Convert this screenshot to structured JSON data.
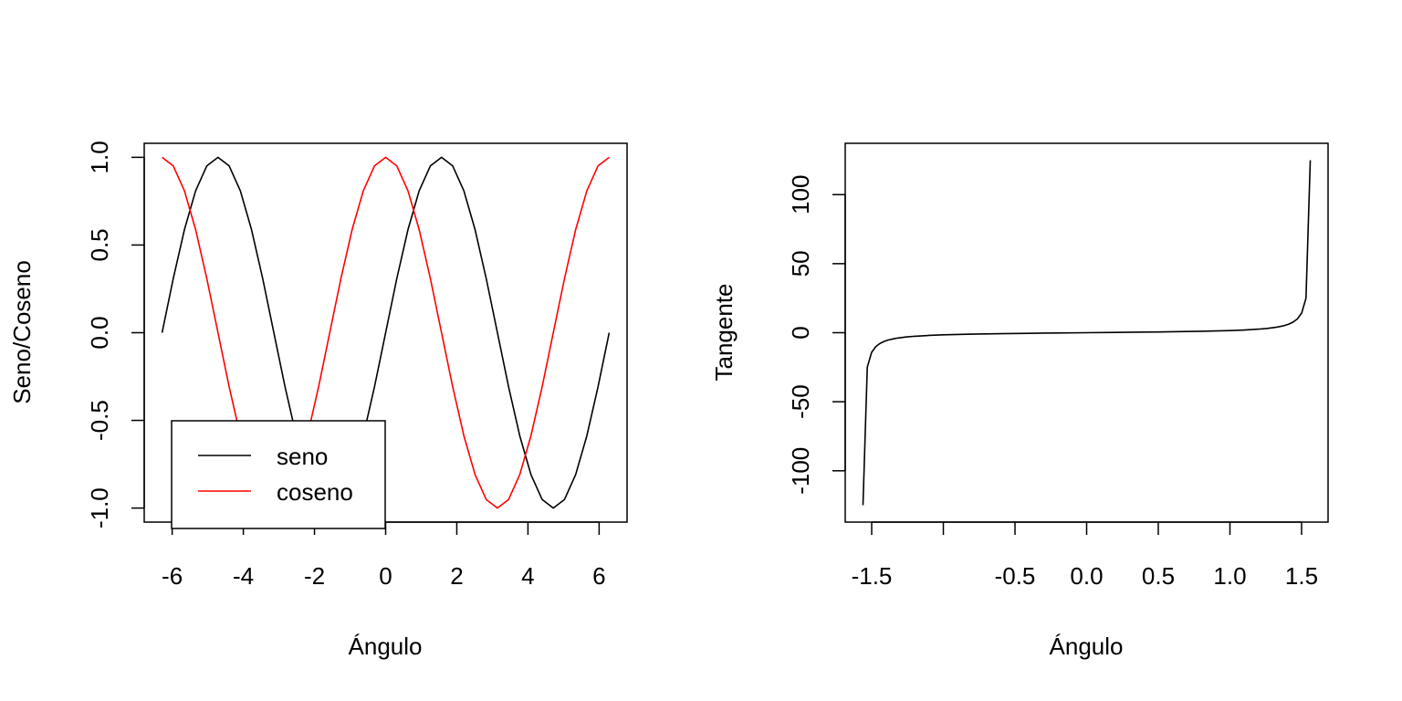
{
  "chart_data": [
    {
      "type": "line",
      "title": "",
      "xlabel": "Ángulo",
      "ylabel": "Seno/Coseno",
      "xlim": [
        -6.283,
        6.283
      ],
      "ylim": [
        -1,
        1
      ],
      "xticks": [
        "-6",
        "-4",
        "-2",
        "0",
        "2",
        "4",
        "6"
      ],
      "yticks": [
        "-1.0",
        "-0.5",
        "0.0",
        "0.5",
        "1.0"
      ],
      "grid": false,
      "legend_position": "bottom-left",
      "x": [
        -6.283,
        -5.969,
        -5.655,
        -5.341,
        -5.027,
        -4.712,
        -4.398,
        -4.084,
        -3.77,
        -3.456,
        -3.142,
        -2.827,
        -2.513,
        -2.199,
        -1.885,
        -1.571,
        -1.257,
        -0.942,
        -0.628,
        -0.314,
        0,
        0.314,
        0.628,
        0.942,
        1.257,
        1.571,
        1.885,
        2.199,
        2.513,
        2.827,
        3.142,
        3.456,
        3.77,
        4.084,
        4.398,
        4.712,
        5.027,
        5.341,
        5.655,
        5.969,
        6.283
      ],
      "series": [
        {
          "name": "seno",
          "color": "#000000",
          "values": [
            0,
            0.309,
            0.588,
            0.809,
            0.951,
            1,
            0.951,
            0.809,
            0.588,
            0.309,
            0,
            -0.309,
            -0.588,
            -0.809,
            -0.951,
            -1,
            -0.951,
            -0.809,
            -0.588,
            -0.309,
            0,
            0.309,
            0.588,
            0.809,
            0.951,
            1,
            0.951,
            0.809,
            0.588,
            0.309,
            0,
            -0.309,
            -0.588,
            -0.809,
            -0.951,
            -1,
            -0.951,
            -0.809,
            -0.588,
            -0.309,
            0
          ]
        },
        {
          "name": "coseno",
          "color": "#ff0000",
          "values": [
            1,
            0.951,
            0.809,
            0.588,
            0.309,
            0,
            -0.309,
            -0.588,
            -0.809,
            -0.951,
            -1,
            -0.951,
            -0.809,
            -0.588,
            -0.309,
            0,
            0.309,
            0.588,
            0.809,
            0.951,
            1,
            0.951,
            0.809,
            0.588,
            0.309,
            0,
            -0.309,
            -0.588,
            -0.809,
            -0.951,
            -1,
            -0.951,
            -0.809,
            -0.588,
            -0.309,
            0,
            0.309,
            0.588,
            0.809,
            0.951,
            1
          ]
        }
      ]
    },
    {
      "type": "line",
      "title": "",
      "xlabel": "Ángulo",
      "ylabel": "Tangente",
      "xlim": [
        -1.56,
        1.56
      ],
      "ylim": [
        -127,
        127
      ],
      "xticks": [
        "-1.5",
        "",
        "-0.5",
        "0.0",
        "0.5",
        "1.0",
        "1.5"
      ],
      "yticks": [
        "-100",
        "-50",
        "0",
        "50",
        "100"
      ],
      "grid": false,
      "x": [
        -1.5608,
        -1.5308,
        -1.5008,
        -1.4708,
        -1.4408,
        -1.4108,
        -1.3808,
        -1.3508,
        -1.3208,
        -1.2908,
        -1.2608,
        -1.2,
        -1.1,
        -1.0,
        -0.8,
        -0.6,
        -0.4,
        -0.2,
        0,
        0.2,
        0.4,
        0.6,
        0.8,
        1.0,
        1.1,
        1.2,
        1.2608,
        1.2908,
        1.3208,
        1.3508,
        1.3808,
        1.4108,
        1.4408,
        1.4708,
        1.5008,
        1.5308,
        1.5608
      ],
      "series": [
        {
          "name": "",
          "color": "#000000",
          "values": [
            -124.9,
            -25.0,
            -14.3,
            -10.0,
            -7.7,
            -6.2,
            -5.2,
            -4.5,
            -3.9,
            -3.5,
            -3.1,
            -2.57,
            -1.96,
            -1.56,
            -1.03,
            -0.68,
            -0.42,
            -0.2,
            0,
            0.2,
            0.42,
            0.68,
            1.03,
            1.56,
            1.96,
            2.57,
            3.1,
            3.5,
            3.9,
            4.5,
            5.2,
            6.2,
            7.7,
            10.0,
            14.3,
            25.0,
            124.9
          ]
        }
      ]
    }
  ],
  "legend": {
    "items": [
      {
        "label": "seno",
        "color": "#000000"
      },
      {
        "label": "coseno",
        "color": "#ff0000"
      }
    ]
  }
}
